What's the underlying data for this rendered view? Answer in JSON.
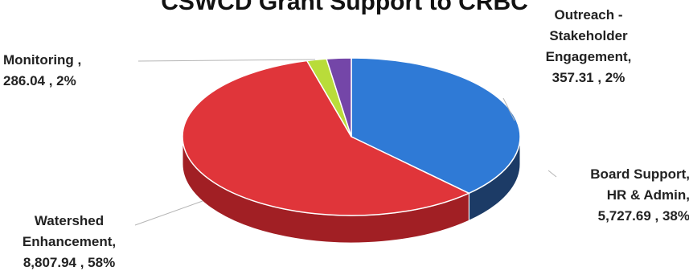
{
  "chart_data": {
    "type": "pie",
    "title": "CSWCD Grant Support to CRBC",
    "start_angle_deg": -90,
    "direction": "clockwise",
    "three_d": true,
    "slices": [
      {
        "name": "Board Support, HR & Admin",
        "value": 5727.69,
        "percent": 38,
        "color": "#2f7ad6",
        "side_color": "#1c3b66",
        "label_lines": [
          "Board Support,",
          "HR & Admin,",
          "5,727.69 , 38%"
        ]
      },
      {
        "name": "Watershed Enhancement",
        "value": 8807.94,
        "percent": 58,
        "color": "#e0353a",
        "side_color": "#a11f24",
        "label_lines": [
          "Watershed",
          "Enhancement,",
          "8,807.94 , 58%"
        ]
      },
      {
        "name": "Monitoring",
        "value": 286.04,
        "percent": 2,
        "color": "#b9dc3a",
        "side_color": "#7f9a1f",
        "label_lines": [
          "Monitoring ,",
          "286.04 , 2%"
        ]
      },
      {
        "name": "Outreach - Stakeholder Engagement",
        "value": 357.31,
        "percent": 2,
        "color": "#7446a8",
        "side_color": "#4b2b73",
        "label_lines": [
          "Outreach -",
          "Stakeholder",
          "Engagement,",
          "357.31 , 2%"
        ]
      }
    ]
  }
}
